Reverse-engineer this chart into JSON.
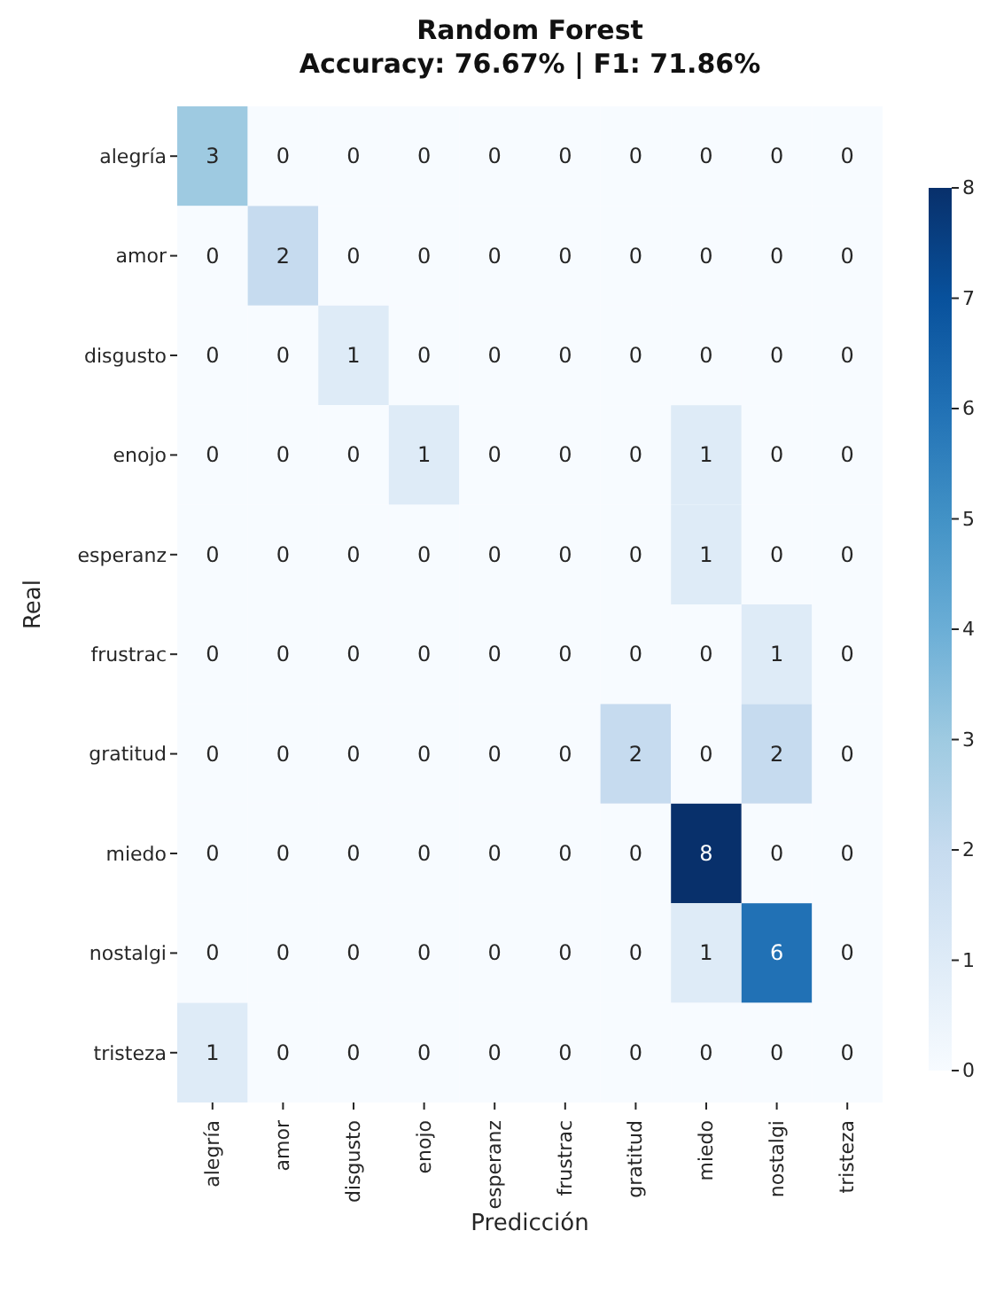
{
  "chart_data": {
    "type": "heatmap",
    "title": "Random Forest",
    "subtitle": "Accuracy: 76.67% | F1: 71.86%",
    "xlabel": "Predicción",
    "ylabel": "Real",
    "categories": [
      "alegría",
      "amor",
      "disgusto",
      "enojo",
      "esperanz",
      "frustrac",
      "gratitud",
      "miedo",
      "nostalgi",
      "tristeza"
    ],
    "y_categories": [
      "alegría",
      "amor",
      "disgusto",
      "enojo",
      "esperanz",
      "frustrac",
      "gratitud",
      "miedo",
      "nostalgi",
      "tristeza"
    ],
    "cells": [
      [
        3,
        0,
        0,
        0,
        0,
        0,
        0,
        0,
        0,
        0
      ],
      [
        0,
        2,
        0,
        0,
        0,
        0,
        0,
        0,
        0,
        0
      ],
      [
        0,
        0,
        1,
        0,
        0,
        0,
        0,
        0,
        0,
        0
      ],
      [
        0,
        0,
        0,
        1,
        0,
        0,
        0,
        1,
        0,
        0
      ],
      [
        0,
        0,
        0,
        0,
        0,
        0,
        0,
        1,
        0,
        0
      ],
      [
        0,
        0,
        0,
        0,
        0,
        0,
        0,
        0,
        1,
        0
      ],
      [
        0,
        0,
        0,
        0,
        0,
        0,
        2,
        0,
        2,
        0
      ],
      [
        0,
        0,
        0,
        0,
        0,
        0,
        0,
        8,
        0,
        0
      ],
      [
        0,
        0,
        0,
        0,
        0,
        0,
        0,
        1,
        6,
        0
      ],
      [
        1,
        0,
        0,
        0,
        0,
        0,
        0,
        0,
        0,
        0
      ]
    ],
    "data_labels": true,
    "clim": [
      0,
      8
    ],
    "cticks": [
      0,
      1,
      2,
      3,
      4,
      5,
      6,
      7,
      8
    ]
  }
}
